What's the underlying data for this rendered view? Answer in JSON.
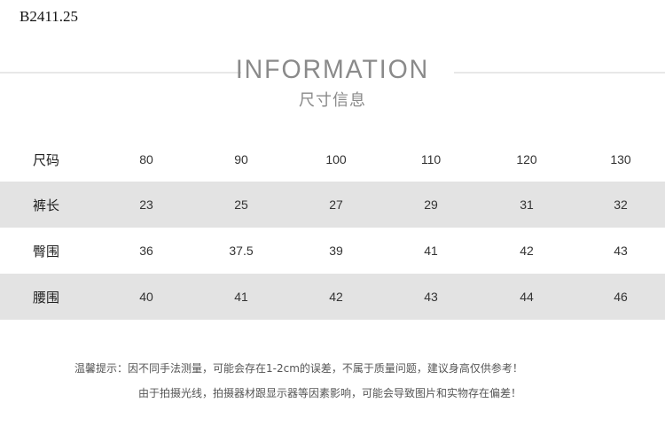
{
  "code": "B2411.25",
  "title": "INFORMATION",
  "subtitle": "尺寸信息",
  "table": {
    "header": {
      "label": "尺码",
      "values": [
        "80",
        "90",
        "100",
        "110",
        "120",
        "130"
      ]
    },
    "rows": [
      {
        "label": "裤长",
        "values": [
          "23",
          "25",
          "27",
          "29",
          "31",
          "32"
        ]
      },
      {
        "label": "臀围",
        "values": [
          "36",
          "37.5",
          "39",
          "41",
          "42",
          "43"
        ]
      },
      {
        "label": "腰围",
        "values": [
          "40",
          "41",
          "42",
          "43",
          "44",
          "46"
        ]
      }
    ]
  },
  "notes": {
    "line1": "温馨提示：因不同手法测量，可能会存在1-2cm的误差，不属于质量问题，建议身高仅供参考！",
    "line2": "由于拍摄光线，拍摄器材跟显示器等因素影响，可能会导致图片和实物存在偏差！"
  },
  "colors": {
    "band": "#e3e3e3",
    "title": "#8a8a8a"
  }
}
